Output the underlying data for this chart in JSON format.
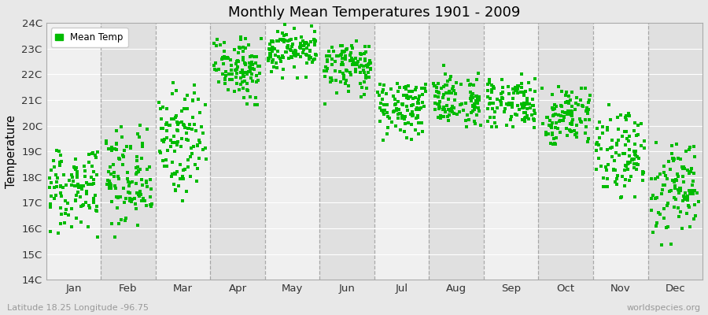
{
  "title": "Monthly Mean Temperatures 1901 - 2009",
  "ylabel": "Temperature",
  "xlabel": "",
  "footer_left": "Latitude 18.25 Longitude -96.75",
  "footer_right": "worldspecies.org",
  "legend_label": "Mean Temp",
  "ylim": [
    14,
    24
  ],
  "ytick_labels": [
    "14C",
    "15C",
    "16C",
    "17C",
    "18C",
    "19C",
    "20C",
    "21C",
    "22C",
    "23C",
    "24C"
  ],
  "ytick_values": [
    14,
    15,
    16,
    17,
    18,
    19,
    20,
    21,
    22,
    23,
    24
  ],
  "months": [
    "Jan",
    "Feb",
    "Mar",
    "Apr",
    "May",
    "Jun",
    "Jul",
    "Aug",
    "Sep",
    "Oct",
    "Nov",
    "Dec"
  ],
  "month_centers": [
    0.5,
    1.5,
    2.5,
    3.5,
    4.5,
    5.5,
    6.5,
    7.5,
    8.5,
    9.5,
    10.5,
    11.5
  ],
  "marker_color": "#00BB00",
  "background_color": "#E8E8E8",
  "band_color_light": "#F0F0F0",
  "band_color_dark": "#E0E0E0",
  "grid_color": "#888888",
  "n_years": 109,
  "monthly_means": [
    17.8,
    18.0,
    19.5,
    22.3,
    23.0,
    22.3,
    20.8,
    21.0,
    20.9,
    20.3,
    18.9,
    17.7
  ],
  "monthly_stds": [
    1.0,
    1.0,
    1.1,
    0.65,
    0.45,
    0.55,
    0.55,
    0.55,
    0.55,
    0.65,
    0.9,
    1.0
  ],
  "monthly_mins": [
    14.5,
    15.5,
    17.0,
    20.8,
    21.8,
    20.8,
    19.3,
    19.7,
    19.7,
    19.0,
    16.3,
    15.0
  ],
  "monthly_maxs": [
    19.2,
    20.2,
    21.8,
    23.8,
    24.0,
    23.3,
    21.8,
    22.4,
    22.4,
    21.6,
    21.0,
    19.4
  ],
  "seed": 77
}
